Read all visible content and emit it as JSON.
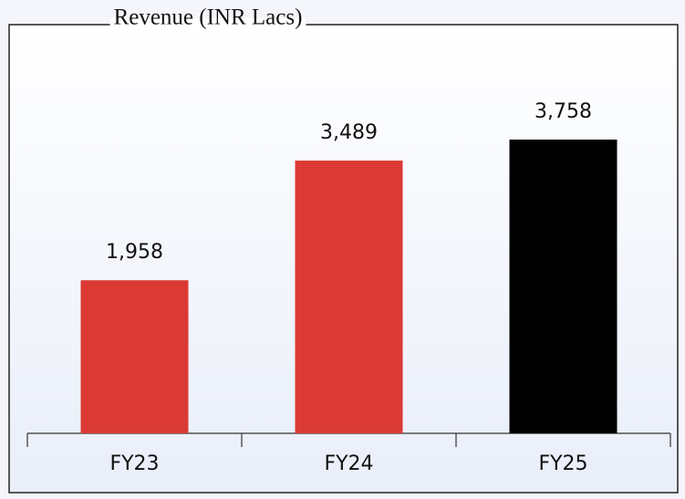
{
  "chart_data": {
    "type": "bar",
    "title": "Revenue (INR Lacs)",
    "categories": [
      "FY23",
      "FY24",
      "FY25"
    ],
    "values": [
      1958,
      3489,
      3758
    ],
    "value_labels": [
      "1,958",
      "3,489",
      "3,758"
    ],
    "colors": [
      "#db3a34",
      "#db3a34",
      "#000000"
    ]
  }
}
